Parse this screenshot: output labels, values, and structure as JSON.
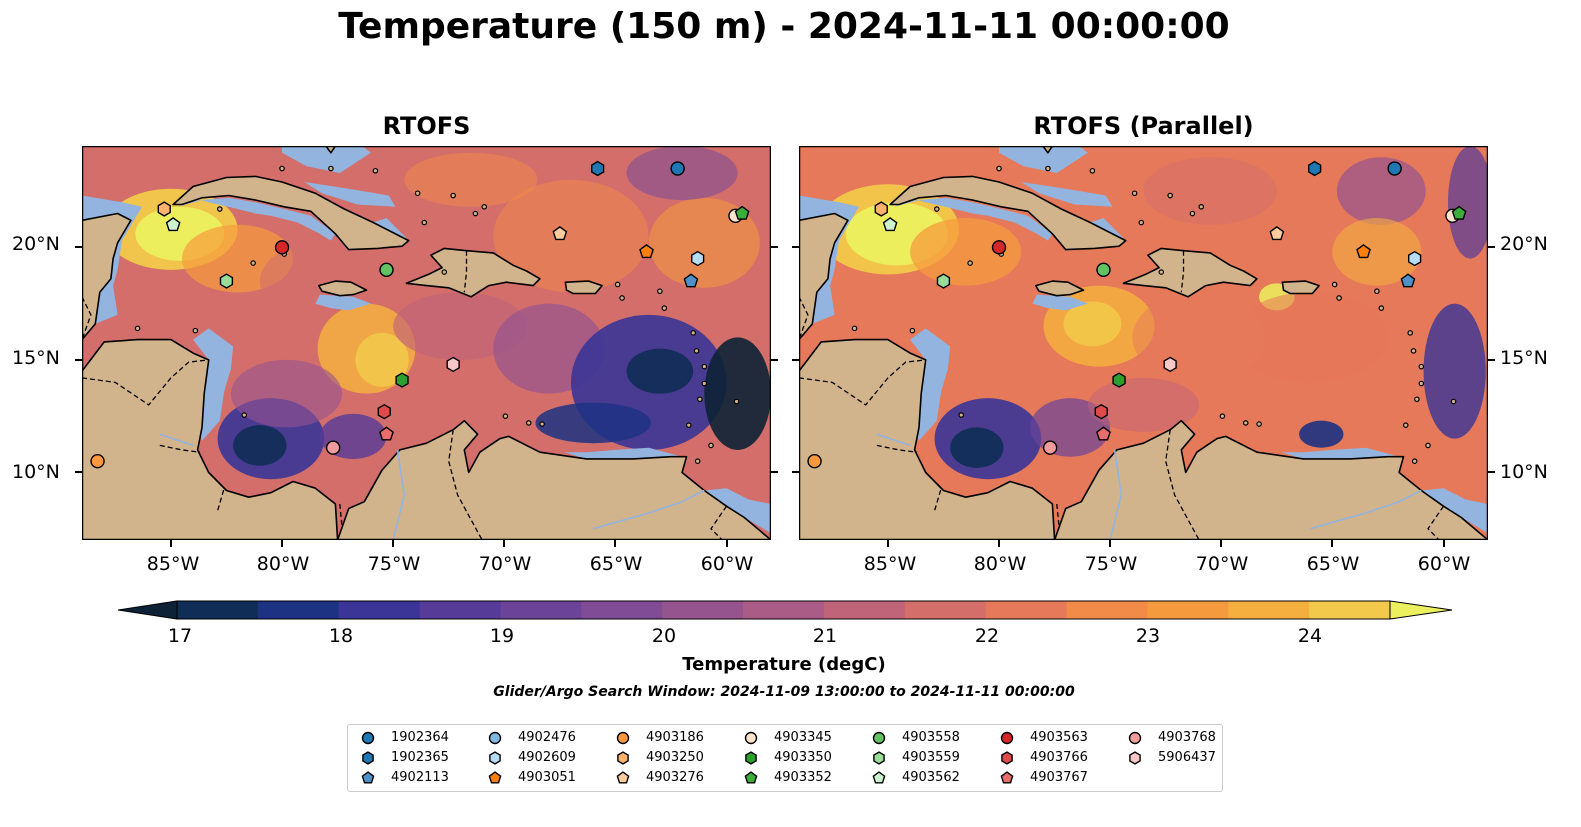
{
  "title": "Temperature (150 m) - 2024-11-11 00:00:00",
  "panels": [
    {
      "title": "RTOFS"
    },
    {
      "title": "RTOFS (Parallel)"
    }
  ],
  "axes": {
    "lat_labels": [
      "20°N",
      "15°N",
      "10°N"
    ],
    "lon_labels": [
      "85°W",
      "80°W",
      "75°W",
      "70°W",
      "65°W",
      "60°W"
    ],
    "lon_range": [
      -89,
      -58
    ],
    "lat_range": [
      7,
      24.5
    ]
  },
  "colorbar": {
    "label": "Temperature (degC)",
    "ticks": [
      "17",
      "18",
      "19",
      "20",
      "21",
      "22",
      "23",
      "24"
    ],
    "range": [
      17,
      24.5
    ],
    "extend": "both",
    "colors": [
      "#0d2236",
      "#0f2d57",
      "#1d3282",
      "#3a3597",
      "#563b98",
      "#6b4398",
      "#7f4c95",
      "#96548f",
      "#ab5c86",
      "#c0647a",
      "#d36e6a",
      "#e6795a",
      "#f28a48",
      "#f69b3d",
      "#f4af3f",
      "#f2c94a",
      "#ecf05e"
    ]
  },
  "search_window": "Glider/Argo Search Window: 2024-11-09 13:00:00 to 2024-11-11 00:00:00",
  "legend": [
    {
      "id": "1902364",
      "marker": "circle",
      "color": "#1f77b4"
    },
    {
      "id": "1902365",
      "marker": "hexagon",
      "color": "#1f77b4"
    },
    {
      "id": "4902113",
      "marker": "pentagon",
      "color": "#4d91c9"
    },
    {
      "id": "4902476",
      "marker": "circle",
      "color": "#7fb6e2"
    },
    {
      "id": "4902609",
      "marker": "hexagon",
      "color": "#b7dcf5"
    },
    {
      "id": "4903051",
      "marker": "pentagon",
      "color": "#ff7f0e"
    },
    {
      "id": "4903186",
      "marker": "circle",
      "color": "#ff983e"
    },
    {
      "id": "4903250",
      "marker": "hexagon",
      "color": "#ffb26e"
    },
    {
      "id": "4903276",
      "marker": "pentagon",
      "color": "#ffcc9e"
    },
    {
      "id": "4903345",
      "marker": "circle",
      "color": "#fde3cc"
    },
    {
      "id": "4903350",
      "marker": "hexagon",
      "color": "#2ca02c"
    },
    {
      "id": "4903352",
      "marker": "pentagon",
      "color": "#3aad3a"
    },
    {
      "id": "4903558",
      "marker": "circle",
      "color": "#62c262"
    },
    {
      "id": "4903559",
      "marker": "hexagon",
      "color": "#98dd98"
    },
    {
      "id": "4903562",
      "marker": "pentagon",
      "color": "#cdf2cd"
    },
    {
      "id": "4903563",
      "marker": "circle",
      "color": "#d62728"
    },
    {
      "id": "4903766",
      "marker": "hexagon",
      "color": "#e04a4a"
    },
    {
      "id": "4903767",
      "marker": "pentagon",
      "color": "#e96d6d"
    },
    {
      "id": "4903768",
      "marker": "circle",
      "color": "#f19c9c"
    },
    {
      "id": "5906437",
      "marker": "hexagon",
      "color": "#f8c7c7"
    }
  ],
  "floats": [
    {
      "id": "1902364",
      "lon": -62.2,
      "lat": 23.5
    },
    {
      "id": "1902365",
      "lon": -65.8,
      "lat": 23.5
    },
    {
      "id": "4902113",
      "lon": -61.6,
      "lat": 18.5
    },
    {
      "id": "4902609",
      "lon": -61.3,
      "lat": 19.5
    },
    {
      "id": "4903051",
      "lon": -63.6,
      "lat": 19.8
    },
    {
      "id": "4903186",
      "lon": -88.3,
      "lat": 10.5
    },
    {
      "id": "4903250",
      "lon": -85.3,
      "lat": 21.7
    },
    {
      "id": "4903276",
      "lon": -67.5,
      "lat": 20.6
    },
    {
      "id": "4903345",
      "lon": -59.6,
      "lat": 21.4
    },
    {
      "id": "4903350",
      "lon": -74.6,
      "lat": 14.1
    },
    {
      "id": "4903352",
      "lon": -59.3,
      "lat": 21.5
    },
    {
      "id": "4903558",
      "lon": -75.3,
      "lat": 19.0
    },
    {
      "id": "4903559",
      "lon": -82.5,
      "lat": 18.5
    },
    {
      "id": "4903562",
      "lon": -84.9,
      "lat": 21.0
    },
    {
      "id": "4903563",
      "lon": -80.0,
      "lat": 20.0
    },
    {
      "id": "4903766",
      "lon": -75.4,
      "lat": 12.7
    },
    {
      "id": "4903767",
      "lon": -75.3,
      "lat": 11.7
    },
    {
      "id": "4903768",
      "lon": -77.7,
      "lat": 11.1
    },
    {
      "id": "5906437",
      "lon": -72.3,
      "lat": 14.8
    }
  ]
}
